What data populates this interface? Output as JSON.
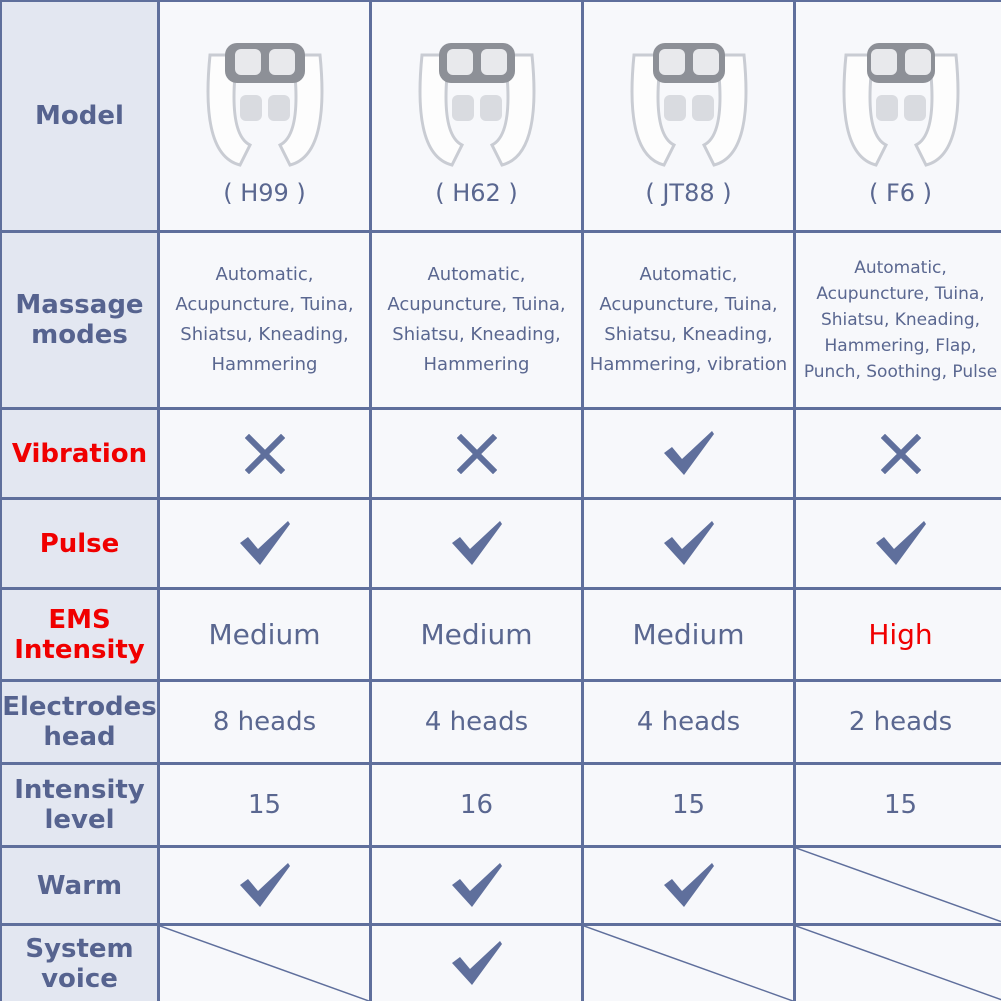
{
  "colors": {
    "border": "#5f6f9c",
    "text": "#5a6790",
    "highlight": "#f00000",
    "header_bg": "#e3e7f1",
    "cell_bg": "#f7f8fb"
  },
  "rows": [
    {
      "label": "Model",
      "label_color": "default",
      "cells": [
        {
          "text": "( H99 )"
        },
        {
          "text": "( H62 )"
        },
        {
          "text": "( JT88 )"
        },
        {
          "text": "( F6 )"
        }
      ]
    },
    {
      "label": "Massage modes",
      "label_color": "default",
      "cells": [
        {
          "lines": [
            "Automatic,",
            "Acupuncture, Tuina,",
            "Shiatsu, Kneading,",
            "Hammering"
          ]
        },
        {
          "lines": [
            "Automatic,",
            "Acupuncture, Tuina,",
            "Shiatsu, Kneading,",
            "Hammering"
          ]
        },
        {
          "lines": [
            "Automatic,",
            "Acupuncture, Tuina,",
            "Shiatsu, Kneading,",
            "Hammering, vibration"
          ]
        },
        {
          "lines": [
            "Automatic,",
            "Acupuncture, Tuina,",
            "Shiatsu, Kneading,",
            "Hammering, Flap,",
            "Punch, Soothing, Pulse"
          ]
        }
      ]
    },
    {
      "label": "Vibration",
      "label_color": "red",
      "cells": [
        {
          "mark": "cross"
        },
        {
          "mark": "cross"
        },
        {
          "mark": "check"
        },
        {
          "mark": "cross"
        }
      ]
    },
    {
      "label": "Pulse",
      "label_color": "red",
      "cells": [
        {
          "mark": "check"
        },
        {
          "mark": "check"
        },
        {
          "mark": "check"
        },
        {
          "mark": "check"
        }
      ]
    },
    {
      "label": "EMS Intensity",
      "label_color": "red",
      "cells": [
        {
          "text": "Medium"
        },
        {
          "text": "Medium"
        },
        {
          "text": "Medium"
        },
        {
          "text": "High",
          "highlight": true
        }
      ]
    },
    {
      "label": "Electrodes head",
      "label_color": "default",
      "cells": [
        {
          "text": "8 heads"
        },
        {
          "text": "4 heads"
        },
        {
          "text": "4 heads"
        },
        {
          "text": "2 heads"
        }
      ]
    },
    {
      "label": "Intensity level",
      "label_color": "default",
      "cells": [
        {
          "text": "15"
        },
        {
          "text": "16"
        },
        {
          "text": "15"
        },
        {
          "text": "15"
        }
      ]
    },
    {
      "label": "Warm",
      "label_color": "default",
      "cells": [
        {
          "mark": "check"
        },
        {
          "mark": "check"
        },
        {
          "mark": "check"
        },
        {
          "mark": "none"
        }
      ]
    },
    {
      "label": "System voice",
      "label_color": "default",
      "cells": [
        {
          "mark": "none"
        },
        {
          "mark": "check"
        },
        {
          "mark": "none"
        },
        {
          "mark": "none"
        }
      ]
    }
  ]
}
